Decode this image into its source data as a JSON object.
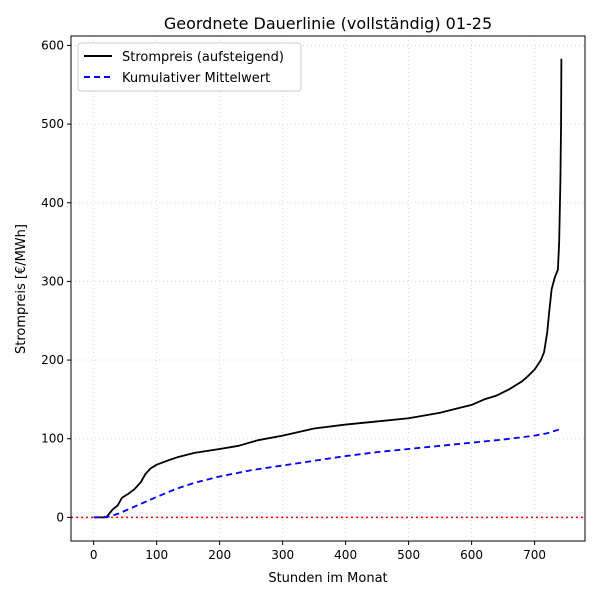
{
  "chart_data": {
    "type": "line",
    "title": "Geordnete Dauerlinie (vollständig) 01-25",
    "xlabel": "Stunden im Monat",
    "ylabel": "Strompreis [€/MWh]",
    "xlim": [
      -36,
      780
    ],
    "ylim": [
      -30,
      612
    ],
    "x_ticks": [
      0,
      100,
      200,
      300,
      400,
      500,
      600,
      700
    ],
    "y_ticks": [
      0,
      100,
      200,
      300,
      400,
      500,
      600
    ],
    "grid": true,
    "grid_style": "dotted",
    "legend_position": "top-left",
    "reference_line": {
      "y": 0,
      "color": "#ff0000",
      "style": "dotted"
    },
    "series": [
      {
        "name": "Strompreis (aufsteigend)",
        "color": "#000000",
        "style": "solid",
        "points": [
          [
            0,
            0
          ],
          [
            20,
            0
          ],
          [
            25,
            5
          ],
          [
            30,
            10
          ],
          [
            38,
            15
          ],
          [
            45,
            25
          ],
          [
            55,
            30
          ],
          [
            65,
            36
          ],
          [
            75,
            45
          ],
          [
            82,
            55
          ],
          [
            90,
            62
          ],
          [
            100,
            67
          ],
          [
            120,
            73
          ],
          [
            135,
            77
          ],
          [
            160,
            82
          ],
          [
            200,
            87
          ],
          [
            230,
            91
          ],
          [
            260,
            98
          ],
          [
            300,
            104
          ],
          [
            350,
            113
          ],
          [
            400,
            118
          ],
          [
            450,
            122
          ],
          [
            500,
            126
          ],
          [
            550,
            133
          ],
          [
            580,
            139
          ],
          [
            600,
            143
          ],
          [
            620,
            150
          ],
          [
            640,
            155
          ],
          [
            660,
            163
          ],
          [
            680,
            173
          ],
          [
            690,
            180
          ],
          [
            700,
            188
          ],
          [
            710,
            200
          ],
          [
            715,
            210
          ],
          [
            720,
            235
          ],
          [
            723,
            260
          ],
          [
            727,
            290
          ],
          [
            732,
            305
          ],
          [
            737,
            315
          ],
          [
            739,
            350
          ],
          [
            741,
            430
          ],
          [
            742,
            500
          ],
          [
            742.5,
            583
          ]
        ]
      },
      {
        "name": "Kumulativer Mittelwert",
        "color": "#0000ff",
        "style": "dashed",
        "points": [
          [
            0,
            0
          ],
          [
            25,
            1
          ],
          [
            40,
            5
          ],
          [
            60,
            12
          ],
          [
            80,
            19
          ],
          [
            100,
            26
          ],
          [
            130,
            36
          ],
          [
            160,
            44
          ],
          [
            200,
            52
          ],
          [
            250,
            60
          ],
          [
            300,
            66
          ],
          [
            350,
            72
          ],
          [
            400,
            78
          ],
          [
            450,
            83
          ],
          [
            500,
            87
          ],
          [
            550,
            91
          ],
          [
            600,
            95
          ],
          [
            650,
            99
          ],
          [
            700,
            104
          ],
          [
            720,
            107
          ],
          [
            740,
            112
          ],
          [
            743,
            113
          ]
        ]
      }
    ]
  }
}
